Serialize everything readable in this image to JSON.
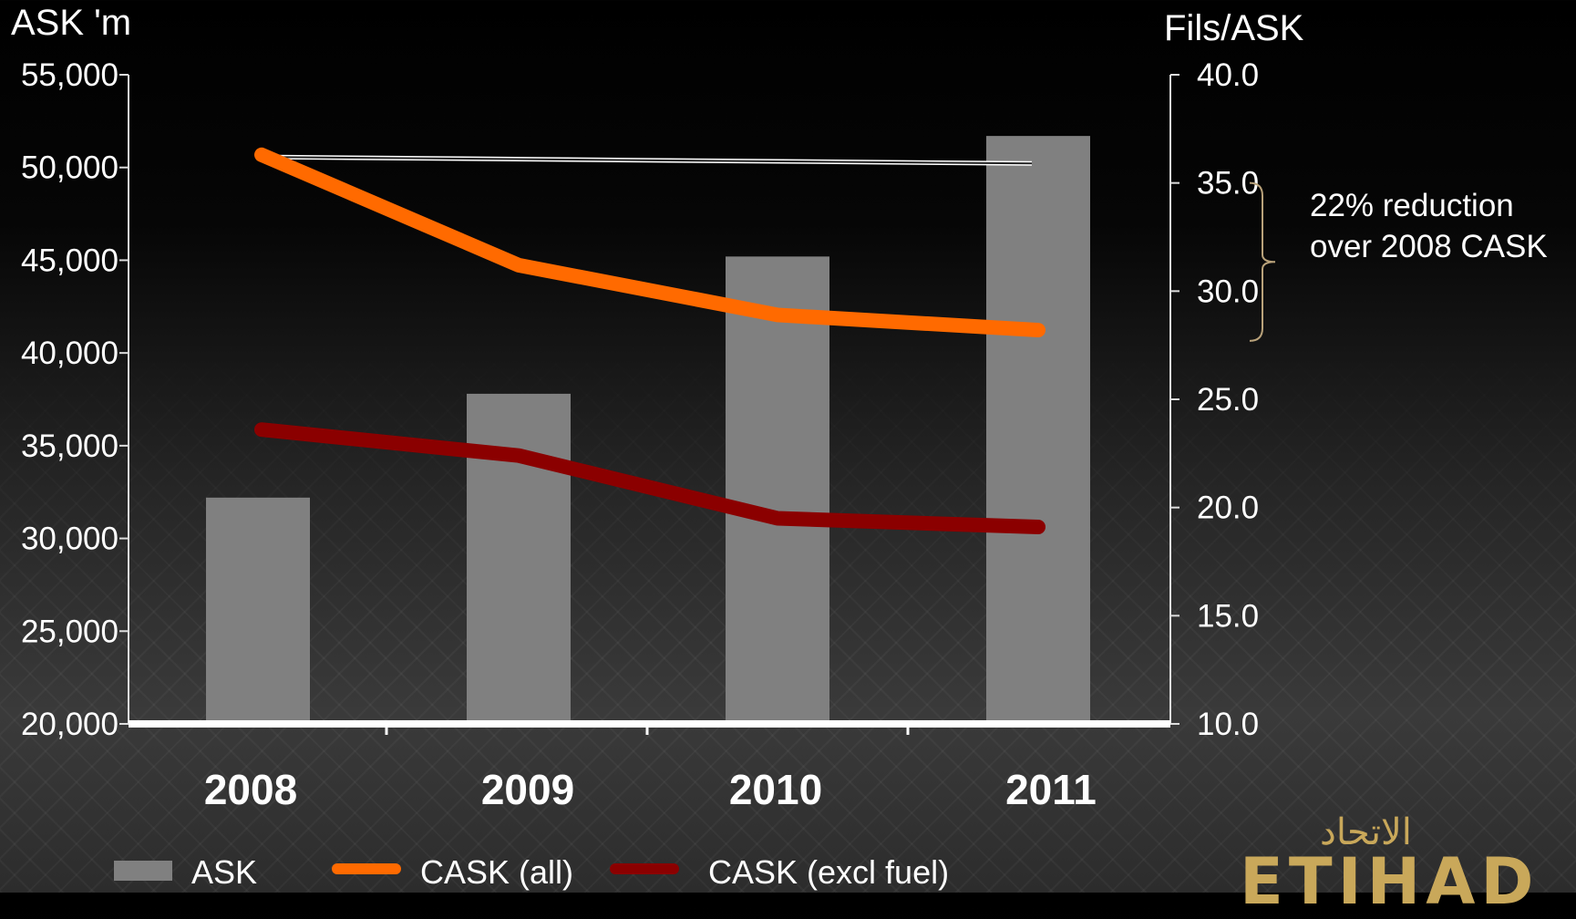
{
  "chart_data": {
    "type": "bar",
    "categories": [
      "2008",
      "2009",
      "2010",
      "2011"
    ],
    "left_axis": {
      "title": "ASK 'm",
      "ylim": [
        20000,
        55000
      ],
      "ticks": [
        "55,000",
        "50,000",
        "45,000",
        "40,000",
        "35,000",
        "30,000",
        "25,000",
        "20,000"
      ],
      "tick_values": [
        55000,
        50000,
        45000,
        40000,
        35000,
        30000,
        25000,
        20000
      ]
    },
    "right_axis": {
      "title": "Fils/ASK",
      "ylim": [
        10,
        40
      ],
      "ticks": [
        "40.0",
        "35.0",
        "30.0",
        "25.0",
        "20.0",
        "15.0",
        "10.0"
      ],
      "tick_values": [
        40,
        35,
        30,
        25,
        20,
        15,
        10
      ]
    },
    "series": [
      {
        "name": "ASK",
        "kind": "bar",
        "axis": "left",
        "color": "#808080",
        "values": [
          32200,
          37800,
          45200,
          51700
        ]
      },
      {
        "name": "CASK (all)",
        "kind": "line",
        "axis": "right",
        "color": "#ff6a00",
        "values": [
          36.3,
          31.2,
          28.9,
          28.2
        ]
      },
      {
        "name": "CASK (excl fuel)",
        "kind": "line",
        "axis": "right",
        "color": "#8b0000",
        "values": [
          23.6,
          22.4,
          19.5,
          19.1
        ]
      }
    ],
    "reference_line": {
      "axis": "right",
      "from": 36.2,
      "to": 35.9,
      "color": "#ffffff"
    },
    "annotation": {
      "line1": "22% reduction",
      "line2": "over 2008 CASK",
      "from": 35.0,
      "to": 27.7
    },
    "legend_placement": "bottom-left",
    "grid": false
  },
  "logo": {
    "arabic": "الاتحاد",
    "latin": "ETIHAD"
  },
  "colors": {
    "background": "#000000",
    "bar": "#808080",
    "cask_all": "#ff6a00",
    "cask_excl_fuel": "#8b0000",
    "logo_gold": "#c9a85a"
  }
}
